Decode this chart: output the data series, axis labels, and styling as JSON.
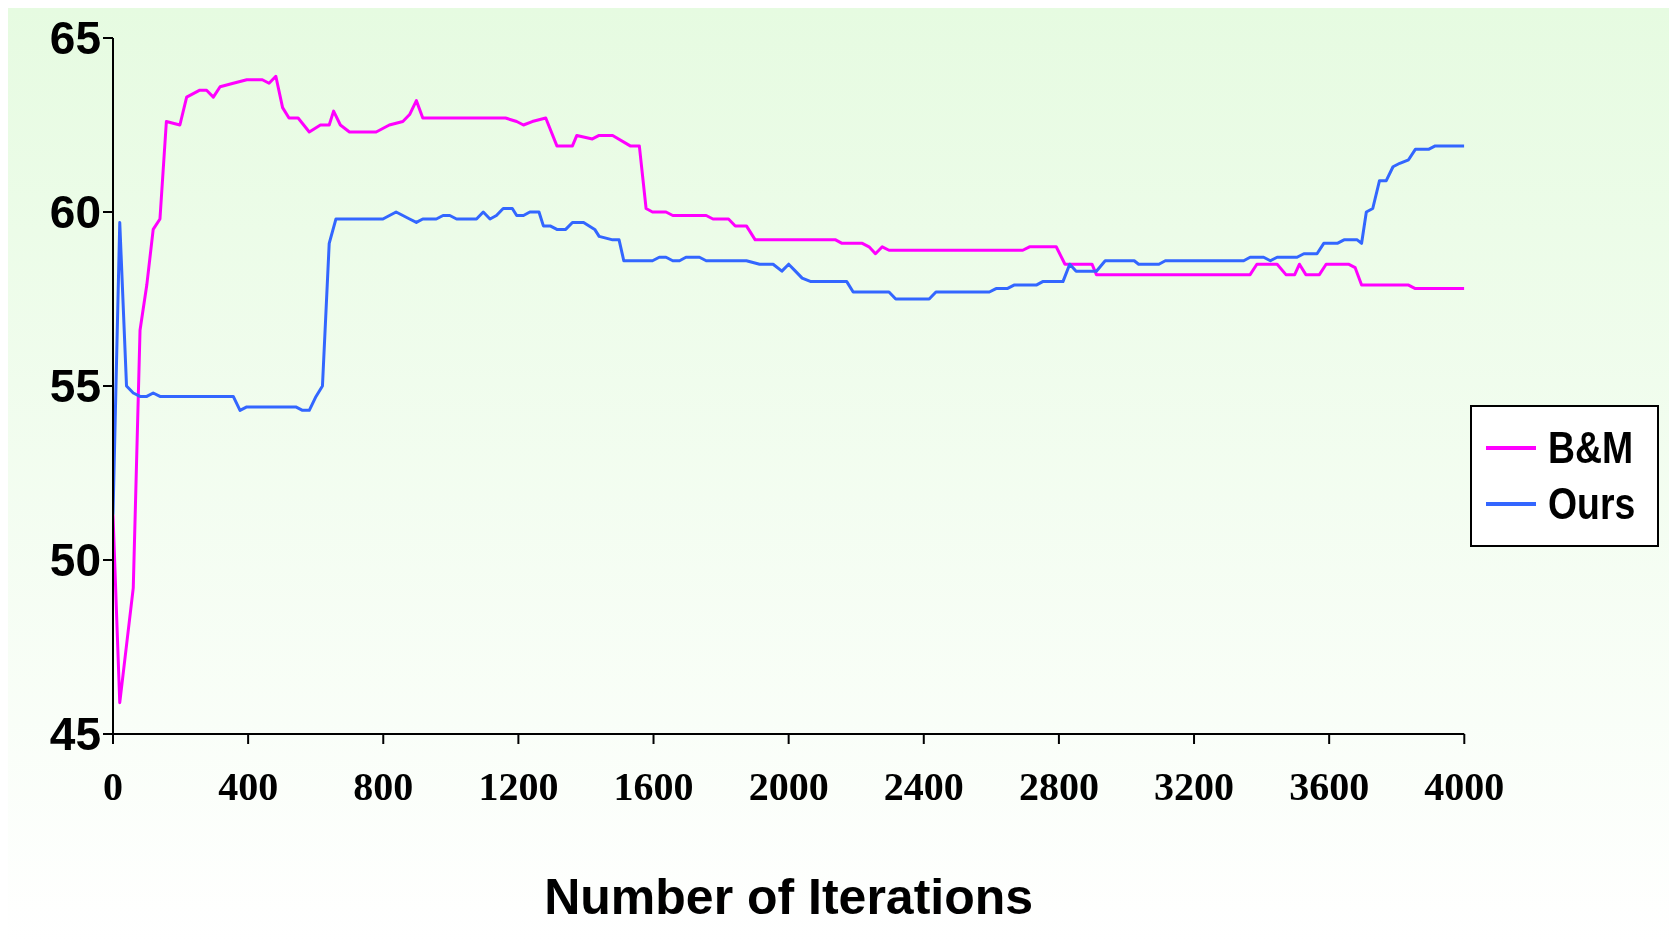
{
  "chart_data": {
    "type": "line",
    "xlabel": "Number of Iterations",
    "xlim": [
      0,
      4000
    ],
    "xticks": [
      0,
      400,
      800,
      1200,
      1600,
      2000,
      2400,
      2800,
      3200,
      3600,
      4000
    ],
    "ylim": [
      45,
      65
    ],
    "yticks": [
      45,
      50,
      55,
      60,
      65
    ],
    "grid": false,
    "legend": "right",
    "marker": "none",
    "line_style": "solid",
    "series": [
      {
        "name": "B&M",
        "color": "#ff00ff",
        "x": [
          0,
          20,
          60,
          80,
          100,
          119,
          139,
          158,
          198,
          218,
          257,
          277,
          297,
          317,
          356,
          396,
          442,
          462,
          482,
          502,
          521,
          548,
          581,
          614,
          640,
          653,
          673,
          700,
          779,
          818,
          858,
          878,
          898,
          917,
          1096,
          1129,
          1162,
          1195,
          1215,
          1241,
          1281,
          1314,
          1360,
          1373,
          1419,
          1439,
          1479,
          1531,
          1558,
          1578,
          1597,
          1637,
          1657,
          1756,
          1776,
          1822,
          1842,
          1875,
          1901,
          2139,
          2158,
          2218,
          2238,
          2257,
          2277,
          2297,
          2693,
          2713,
          2792,
          2818,
          2898,
          2911,
          3366,
          3386,
          3426,
          3446,
          3472,
          3498,
          3512,
          3531,
          3571,
          3591,
          3630,
          3657,
          3677,
          3696,
          3835,
          3855,
          4000
        ],
        "values": [
          51.3,
          45.9,
          49.2,
          56.6,
          57.9,
          59.5,
          59.8,
          62.6,
          62.5,
          63.3,
          63.5,
          63.5,
          63.3,
          63.6,
          63.7,
          63.8,
          63.8,
          63.7,
          63.9,
          63.0,
          62.7,
          62.7,
          62.3,
          62.5,
          62.5,
          62.9,
          62.5,
          62.3,
          62.3,
          62.5,
          62.6,
          62.8,
          63.2,
          62.7,
          62.7,
          62.7,
          62.7,
          62.6,
          62.5,
          62.6,
          62.7,
          61.9,
          61.9,
          62.2,
          62.1,
          62.2,
          62.2,
          61.9,
          61.9,
          60.1,
          60.0,
          60.0,
          59.9,
          59.9,
          59.8,
          59.8,
          59.6,
          59.6,
          59.2,
          59.2,
          59.1,
          59.1,
          59.0,
          58.8,
          59.0,
          58.9,
          58.9,
          59.0,
          59.0,
          58.5,
          58.5,
          58.2,
          58.2,
          58.5,
          58.5,
          58.5,
          58.2,
          58.2,
          58.5,
          58.2,
          58.2,
          58.5,
          58.5,
          58.5,
          58.4,
          57.9,
          57.9,
          57.8,
          57.8
        ]
      },
      {
        "name": "Ours",
        "color": "#3366ff",
        "x": [
          0,
          20,
          40,
          60,
          80,
          100,
          119,
          139,
          356,
          376,
          396,
          541,
          561,
          581,
          601,
          620,
          640,
          660,
          799,
          838,
          878,
          898,
          917,
          957,
          977,
          997,
          1017,
          1076,
          1096,
          1116,
          1135,
          1155,
          1182,
          1195,
          1215,
          1234,
          1261,
          1274,
          1294,
          1314,
          1340,
          1360,
          1393,
          1426,
          1439,
          1479,
          1498,
          1512,
          1597,
          1617,
          1637,
          1657,
          1677,
          1696,
          1736,
          1756,
          1875,
          1914,
          1954,
          1980,
          2000,
          2020,
          2040,
          2066,
          2172,
          2191,
          2297,
          2317,
          2416,
          2436,
          2594,
          2614,
          2647,
          2667,
          2733,
          2752,
          2812,
          2832,
          2851,
          2911,
          2937,
          3023,
          3036,
          3096,
          3115,
          3347,
          3366,
          3406,
          3426,
          3446,
          3505,
          3525,
          3564,
          3584,
          3624,
          3644,
          3683,
          3696,
          3710,
          3729,
          3749,
          3769,
          3789,
          3809,
          3835,
          3855,
          3894,
          3914,
          4000
        ],
        "values": [
          51.3,
          59.7,
          55.0,
          54.8,
          54.7,
          54.7,
          54.8,
          54.7,
          54.7,
          54.3,
          54.4,
          54.4,
          54.3,
          54.3,
          54.7,
          55.0,
          59.1,
          59.8,
          59.8,
          60.0,
          59.8,
          59.7,
          59.8,
          59.8,
          59.9,
          59.9,
          59.8,
          59.8,
          60.0,
          59.8,
          59.9,
          60.1,
          60.1,
          59.9,
          59.9,
          60.0,
          60.0,
          59.6,
          59.6,
          59.5,
          59.5,
          59.7,
          59.7,
          59.5,
          59.3,
          59.2,
          59.2,
          58.6,
          58.6,
          58.7,
          58.7,
          58.6,
          58.6,
          58.7,
          58.7,
          58.6,
          58.6,
          58.5,
          58.5,
          58.3,
          58.5,
          58.3,
          58.1,
          58.0,
          58.0,
          57.7,
          57.7,
          57.5,
          57.5,
          57.7,
          57.7,
          57.8,
          57.8,
          57.9,
          57.9,
          58.0,
          58.0,
          58.5,
          58.3,
          58.3,
          58.6,
          58.6,
          58.5,
          58.5,
          58.6,
          58.6,
          58.7,
          58.7,
          58.6,
          58.7,
          58.7,
          58.8,
          58.8,
          59.1,
          59.1,
          59.2,
          59.2,
          59.1,
          60.0,
          60.1,
          60.9,
          60.9,
          61.3,
          61.4,
          61.5,
          61.8,
          61.8,
          61.9,
          61.9
        ]
      }
    ]
  }
}
